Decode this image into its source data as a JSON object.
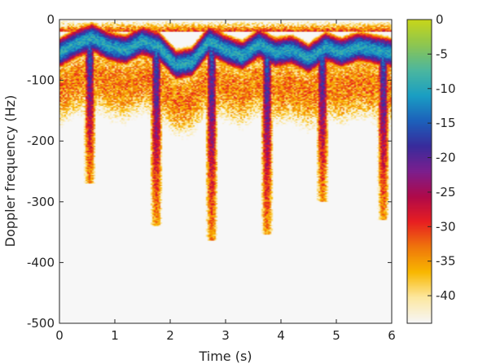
{
  "chart_data": {
    "type": "heatmap",
    "title": "",
    "xlabel": "Time (s)",
    "ylabel": "Doppler frequency (Hz)",
    "xlim": [
      0,
      6
    ],
    "ylim": [
      -500,
      0
    ],
    "xticks": [
      0,
      1,
      2,
      3,
      4,
      5,
      6
    ],
    "yticks": [
      0,
      -100,
      -200,
      -300,
      -400,
      -500
    ],
    "grid": false,
    "colorbar": {
      "range": [
        -44,
        0
      ],
      "ticks": [
        0,
        -5,
        -10,
        -15,
        -20,
        -25,
        -30,
        -35,
        -40
      ],
      "colors_low_to_high": [
        "#f7f7f7",
        "#fde8a0",
        "#f9b800",
        "#f0760c",
        "#e81f22",
        "#b00a4a",
        "#7c1f8e",
        "#392c9c",
        "#1d61bb",
        "#1a9fc4",
        "#4cb7a0",
        "#8cc653",
        "#c7d61b"
      ]
    },
    "background_level": -45,
    "traces_description_points": {
      "body_band_hz": [
        [
          0.0,
          -55
        ],
        [
          0.3,
          -40
        ],
        [
          0.6,
          -30
        ],
        [
          0.9,
          -45
        ],
        [
          1.2,
          -50
        ],
        [
          1.5,
          -35
        ],
        [
          1.8,
          -45
        ],
        [
          2.1,
          -75
        ],
        [
          2.4,
          -70
        ],
        [
          2.7,
          -35
        ],
        [
          3.0,
          -50
        ],
        [
          3.3,
          -60
        ],
        [
          3.6,
          -40
        ],
        [
          3.9,
          -55
        ],
        [
          4.2,
          -50
        ],
        [
          4.5,
          -65
        ],
        [
          4.8,
          -45
        ],
        [
          5.1,
          -55
        ],
        [
          5.4,
          -45
        ],
        [
          5.7,
          -50
        ],
        [
          6.0,
          -55
        ]
      ],
      "limb_swings": [
        {
          "t": 0.55,
          "min_hz": -260
        },
        {
          "t": 1.75,
          "min_hz": -330
        },
        {
          "t": 2.75,
          "min_hz": -355
        },
        {
          "t": 3.75,
          "min_hz": -345
        },
        {
          "t": 4.75,
          "min_hz": -290
        },
        {
          "t": 5.85,
          "min_hz": -320
        }
      ]
    }
  }
}
